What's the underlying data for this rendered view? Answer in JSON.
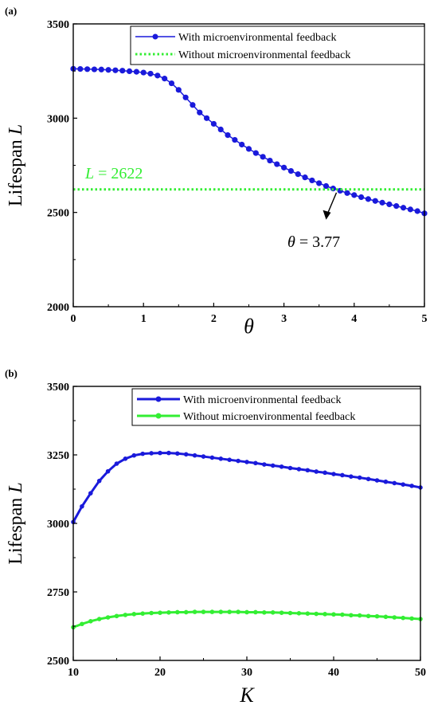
{
  "chart_data": [
    {
      "panel": "(a)",
      "type": "line",
      "xlabel": "θ",
      "ylabel_prefix": "Lifespan ",
      "ylabel_var": "L",
      "xlim": [
        0,
        5
      ],
      "ylim": [
        2000,
        3500
      ],
      "xticks": [
        0,
        1,
        2,
        3,
        4,
        5
      ],
      "yticks": [
        2000,
        2500,
        3000,
        3500
      ],
      "grid": false,
      "legend_position": "top-right",
      "series": [
        {
          "name": "With microenvironmental feedback",
          "color": "#1a1adb",
          "style": "line-markers",
          "x": [
            0,
            0.1,
            0.2,
            0.3,
            0.4,
            0.5,
            0.6,
            0.7,
            0.8,
            0.9,
            1.0,
            1.1,
            1.2,
            1.3,
            1.4,
            1.5,
            1.6,
            1.7,
            1.8,
            1.9,
            2.0,
            2.1,
            2.2,
            2.3,
            2.4,
            2.5,
            2.6,
            2.7,
            2.8,
            2.9,
            3.0,
            3.1,
            3.2,
            3.3,
            3.4,
            3.5,
            3.6,
            3.7,
            3.8,
            3.9,
            4.0,
            4.1,
            4.2,
            4.3,
            4.4,
            4.5,
            4.6,
            4.7,
            4.8,
            4.9,
            5.0
          ],
          "y": [
            3262,
            3261,
            3260,
            3259,
            3258,
            3256,
            3254,
            3252,
            3249,
            3246,
            3242,
            3236,
            3226,
            3210,
            3185,
            3150,
            3110,
            3070,
            3030,
            3000,
            2970,
            2940,
            2910,
            2885,
            2860,
            2837,
            2815,
            2795,
            2775,
            2756,
            2738,
            2720,
            2703,
            2686,
            2670,
            2655,
            2640,
            2627,
            2615,
            2603,
            2592,
            2581,
            2571,
            2561,
            2552,
            2543,
            2534,
            2525,
            2516,
            2507,
            2495
          ]
        },
        {
          "name": "Without microenvironmental feedback",
          "color": "#33ee33",
          "style": "dotted",
          "x": [
            0,
            5
          ],
          "y": [
            2622,
            2622
          ]
        }
      ],
      "annotations": {
        "hline_label_prefix": "L",
        "hline_label_suffix": " = 2622",
        "hline_value": 2622,
        "point_label_prefix": "θ",
        "point_label_suffix": " = 3.77",
        "point_x": 3.77,
        "point_y": 2622
      }
    },
    {
      "panel": "(b)",
      "type": "line",
      "xlabel": "K",
      "ylabel_prefix": "Lifespan ",
      "ylabel_var": "L",
      "xlim": [
        10,
        50
      ],
      "ylim": [
        2500,
        3500
      ],
      "xticks": [
        10,
        20,
        30,
        40,
        50
      ],
      "yticks": [
        2500,
        2750,
        3000,
        3250,
        3500
      ],
      "grid": false,
      "legend_position": "top-right",
      "series": [
        {
          "name": "With microenvironmental feedback",
          "color": "#1a1adb",
          "style": "line-markers",
          "x": [
            10,
            11,
            12,
            13,
            14,
            15,
            16,
            17,
            18,
            19,
            20,
            21,
            22,
            23,
            24,
            25,
            26,
            27,
            28,
            29,
            30,
            31,
            32,
            33,
            34,
            35,
            36,
            37,
            38,
            39,
            40,
            41,
            42,
            43,
            44,
            45,
            46,
            47,
            48,
            49,
            50
          ],
          "y": [
            3005,
            3062,
            3110,
            3155,
            3190,
            3218,
            3236,
            3248,
            3254,
            3256,
            3257,
            3257,
            3255,
            3252,
            3248,
            3244,
            3240,
            3236,
            3232,
            3228,
            3224,
            3220,
            3215,
            3211,
            3207,
            3202,
            3198,
            3194,
            3189,
            3185,
            3180,
            3176,
            3171,
            3167,
            3162,
            3157,
            3152,
            3147,
            3142,
            3137,
            3131
          ]
        },
        {
          "name": "Without microenvironmental feedback",
          "color": "#33ee33",
          "style": "line-markers",
          "x": [
            10,
            11,
            12,
            13,
            14,
            15,
            16,
            17,
            18,
            19,
            20,
            21,
            22,
            23,
            24,
            25,
            26,
            27,
            28,
            29,
            30,
            31,
            32,
            33,
            34,
            35,
            36,
            37,
            38,
            39,
            40,
            41,
            42,
            43,
            44,
            45,
            46,
            47,
            48,
            49,
            50
          ],
          "y": [
            2621,
            2633,
            2643,
            2651,
            2657,
            2662,
            2666,
            2669,
            2671,
            2673,
            2674,
            2675,
            2676,
            2676,
            2677,
            2677,
            2677,
            2677,
            2677,
            2677,
            2676,
            2676,
            2675,
            2675,
            2674,
            2673,
            2672,
            2671,
            2670,
            2669,
            2668,
            2667,
            2665,
            2664,
            2662,
            2661,
            2659,
            2657,
            2655,
            2653,
            2651
          ]
        }
      ]
    }
  ]
}
